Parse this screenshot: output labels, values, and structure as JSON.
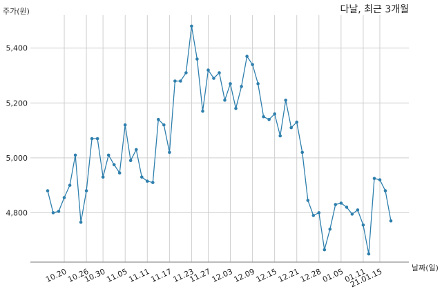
{
  "chart_data": {
    "type": "line",
    "title": "다날, 최근 3개월",
    "ylabel": "주가(원)",
    "xlabel": "날짜(일)",
    "ylim": [
      4620,
      5520
    ],
    "yticks": [
      4800,
      5000,
      5200,
      5400
    ],
    "ytick_labels": [
      "4,800",
      "5,000",
      "5,200",
      "5,400"
    ],
    "xtick_labels": [
      "10.20",
      "10.26",
      "10.30",
      "11.05",
      "11.11",
      "11.17",
      "11.23",
      "11.27",
      "12.03",
      "12.09",
      "12.15",
      "12.21",
      "12.28",
      "01.05",
      "01.11",
      "21.01.15"
    ],
    "xtick_index": [
      3,
      7,
      10,
      14,
      18,
      22,
      26,
      29,
      33,
      37,
      41,
      45,
      49,
      53,
      57,
      60
    ],
    "grid": true,
    "color": "#2e7fad",
    "series": [
      {
        "values": [
          4880,
          4800,
          4805,
          4855,
          4900,
          5010,
          4765,
          4880,
          5070,
          5070,
          4930,
          5010,
          4975,
          4945,
          5120,
          4990,
          5030,
          4930,
          4915,
          4910,
          5140,
          5120,
          5020,
          5280,
          5280,
          5310,
          5480,
          5360,
          5170,
          5320,
          5290,
          5310,
          5210,
          5270,
          5180,
          5260,
          5370,
          5340,
          5270,
          5150,
          5140,
          5160,
          5080,
          5210,
          5110,
          5130,
          5020,
          4845,
          4790,
          4800,
          4665,
          4740,
          4830,
          4835,
          4820,
          4795,
          4810,
          4755,
          4650,
          4925,
          4920,
          4880,
          4770
        ]
      }
    ]
  }
}
